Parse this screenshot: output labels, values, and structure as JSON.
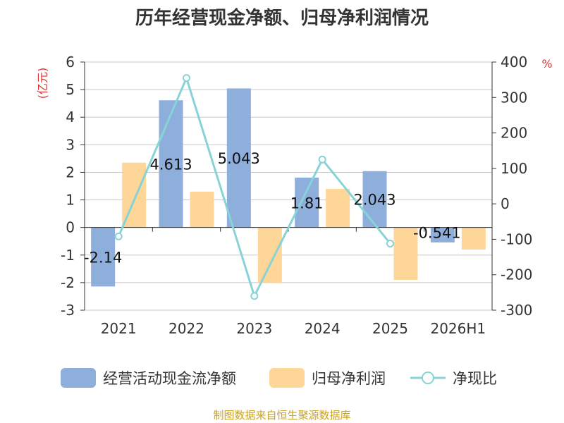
{
  "chart_data": {
    "type": "bar",
    "title": "历年经营现金净额、归母净利润情况",
    "categories": [
      "2021",
      "2022",
      "2023",
      "2024",
      "2025",
      "2026H1"
    ],
    "left_axis": {
      "unit": "(亿元)",
      "ylim": [
        -3,
        6
      ],
      "ticks": [
        "-3",
        "-2",
        "-1",
        "0",
        "1",
        "2",
        "3",
        "4",
        "5",
        "6"
      ]
    },
    "right_axis": {
      "unit": "%",
      "ylim": [
        -300,
        400
      ],
      "ticks": [
        "-300",
        "-200",
        "-100",
        "0",
        "100",
        "200",
        "300",
        "400"
      ]
    },
    "series": [
      {
        "name": "经营活动现金流净额",
        "type": "bar",
        "axis": "left",
        "color": "#8eaedb",
        "values": [
          -2.14,
          4.613,
          5.043,
          1.81,
          2.043,
          -0.541
        ],
        "labels": [
          "-2.14",
          "4.613",
          "5.043",
          "1.81",
          "2.043",
          "-0.541"
        ]
      },
      {
        "name": "归母净利润",
        "type": "bar",
        "axis": "left",
        "color": "#fdd698",
        "values": [
          2.35,
          1.3,
          -2.0,
          1.4,
          -1.9,
          -0.8
        ]
      },
      {
        "name": "净现比",
        "type": "line",
        "axis": "right",
        "color": "#88d3d6",
        "values": [
          -92,
          355,
          -260,
          125,
          -112,
          null
        ]
      }
    ],
    "grid": true,
    "legend": "bottom"
  },
  "source": "制图数据来自恒生聚源数据库"
}
